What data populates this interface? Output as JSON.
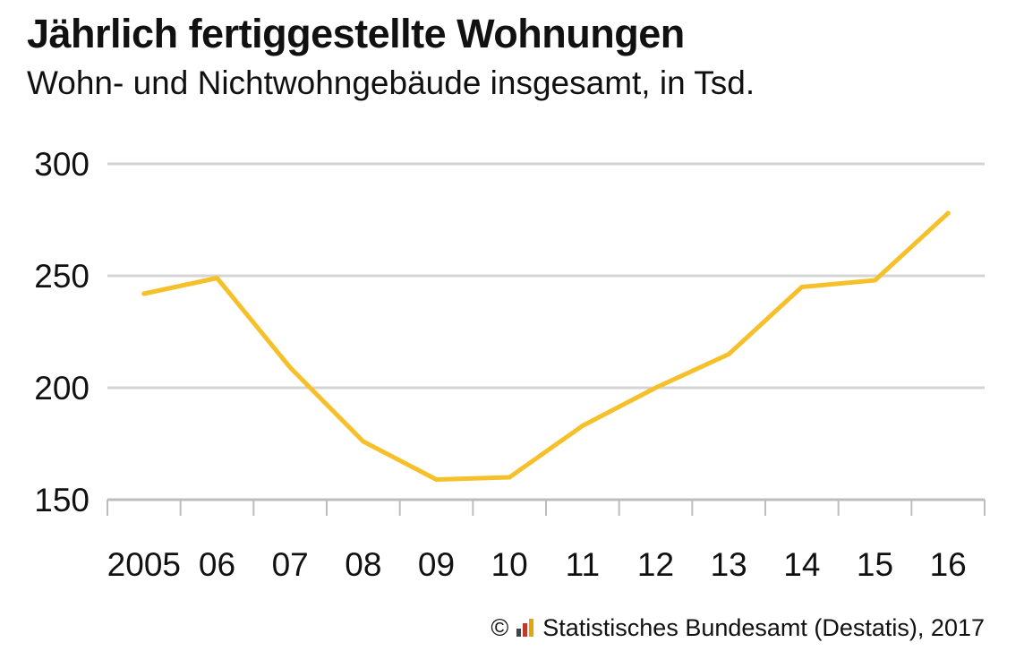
{
  "chart_data": {
    "type": "line",
    "title": "Jährlich fertiggestellte Wohnungen",
    "subtitle": "Wohn- und Nichtwohngebäude insgesamt, in Tsd.",
    "categories": [
      "2005",
      "06",
      "07",
      "08",
      "09",
      "10",
      "11",
      "12",
      "13",
      "14",
      "15",
      "16"
    ],
    "series": [
      {
        "values": [
          242,
          249,
          209,
          176,
          159,
          160,
          183,
          200,
          215,
          245,
          248,
          278
        ],
        "color": "#f5c02a"
      }
    ],
    "ylim": [
      150,
      300
    ],
    "yticks": [
      150,
      200,
      250,
      300
    ],
    "grid": true,
    "grid_color": "#d4d4d4",
    "legend": "none"
  },
  "source": {
    "copyright_symbol": "©",
    "logo_icon": "destatis-logo-icon",
    "text": "Statistisches Bundesamt (Destatis), 2017"
  }
}
